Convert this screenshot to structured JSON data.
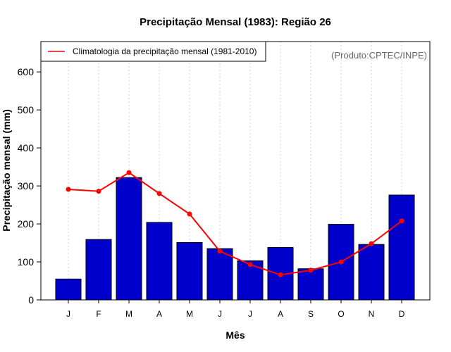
{
  "chart_data": {
    "type": "bar",
    "title": "Precipitação Mensal (1983): Região 26",
    "xlabel": "Mês",
    "ylabel": "Precipitação mensal (mm)",
    "categories": [
      "J",
      "F",
      "M",
      "A",
      "M",
      "J",
      "J",
      "A",
      "S",
      "O",
      "N",
      "D"
    ],
    "ylim": [
      0,
      680
    ],
    "yticks": [
      0,
      100,
      200,
      300,
      400,
      500,
      600
    ],
    "grid": "vertical dotted",
    "series": [
      {
        "name": "Precipitação mensal (1983)",
        "kind": "bar",
        "color": "#0000cc",
        "values": [
          55,
          159,
          322,
          204,
          151,
          135,
          103,
          138,
          82,
          199,
          146,
          276
        ]
      },
      {
        "name": "Climatologia da precipitação mensal (1981-2010)",
        "kind": "line",
        "color": "#ff0000",
        "values": [
          291,
          286,
          335,
          280,
          226,
          128,
          93,
          66,
          78,
          100,
          148,
          208
        ]
      }
    ],
    "legend": {
      "position": "top-left",
      "entries": [
        "Climatologia da precipitação mensal (1981-2010)"
      ]
    },
    "annotation": "(Produto:CPTEC/INPE)"
  },
  "colors": {
    "bar": "#0000cc",
    "line": "#ff0000",
    "grid": "#d0d0d0",
    "credit": "#666666"
  }
}
